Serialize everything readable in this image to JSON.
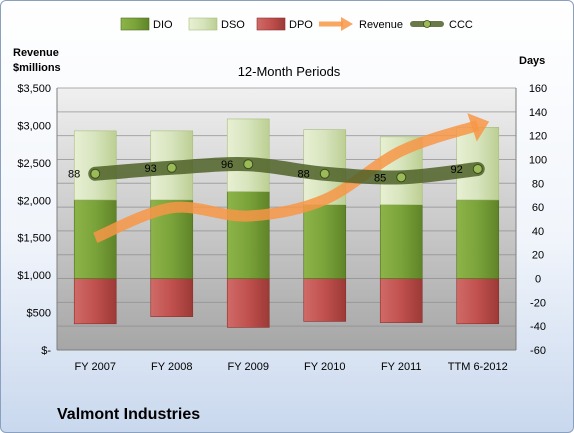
{
  "chart_data": {
    "type": "bar",
    "title": "12-Month Periods",
    "company": "Valmont Industries",
    "left_axis_label_line1": "Revenue",
    "left_axis_label_line2": "$millions",
    "right_axis_label": "Days",
    "categories": [
      "FY 2007",
      "FY 2008",
      "FY 2009",
      "FY 2010",
      "FY 2011",
      "TTM 6-2012"
    ],
    "left_ylim": [
      0,
      3500
    ],
    "left_ticks": [
      "$-",
      "$500",
      "$1,000",
      "$1,500",
      "$2,000",
      "$2,500",
      "$3,000",
      "$3,500"
    ],
    "right_ylim": [
      -60,
      160
    ],
    "right_ticks": [
      "-60",
      "-40",
      "-20",
      "0",
      "20",
      "40",
      "60",
      "80",
      "100",
      "120",
      "140",
      "160"
    ],
    "series": [
      {
        "name": "DIO",
        "axis": "days",
        "color": "#77a033",
        "values": [
          66,
          66,
          73,
          62,
          62,
          66
        ]
      },
      {
        "name": "DSO",
        "axis": "days",
        "color": "#d7e4bd",
        "values": [
          58,
          58,
          61,
          63,
          57,
          61
        ]
      },
      {
        "name": "DPO",
        "axis": "days",
        "color": "#c0504d",
        "values": [
          -38,
          -32,
          -41,
          -36,
          -37,
          -38
        ]
      },
      {
        "name": "Revenue",
        "axis": "revenue",
        "color": "#f79646",
        "values": [
          1500,
          1900,
          1790,
          2010,
          2660,
          3000
        ]
      },
      {
        "name": "CCC",
        "axis": "days",
        "color": "#4f6228",
        "values": [
          88,
          93,
          96,
          88,
          85,
          92
        ]
      }
    ],
    "ccc_labels": [
      "88",
      "93",
      "96",
      "88",
      "85",
      "92"
    ],
    "grid": true,
    "legend": "top"
  }
}
